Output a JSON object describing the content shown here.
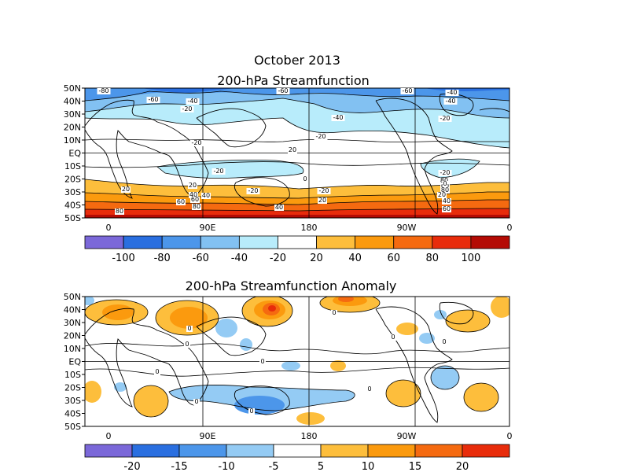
{
  "title": {
    "line1": "October 2013",
    "line2": "200-hPa Streamfunction"
  },
  "panel2_title": "200-hPa Streamfunction Anomaly",
  "lat_labels": [
    "50N",
    "40N",
    "30N",
    "20N",
    "10N",
    "EQ",
    "10S",
    "20S",
    "30S",
    "40S",
    "50S"
  ],
  "lon_labels": [
    "0",
    "90E",
    "180",
    "90W",
    "0"
  ],
  "colorbar1": {
    "labels": [
      "-100",
      "-80",
      "-60",
      "-40",
      "-20",
      "20",
      "40",
      "60",
      "80",
      "100"
    ],
    "colors": [
      "#7b68d9",
      "#2a6fe0",
      "#4c96ea",
      "#82c1f2",
      "#b8ecfb",
      "#ffffff",
      "#fdbe3c",
      "#fb9a0e",
      "#f56a10",
      "#e82c0b",
      "#b40b05"
    ]
  },
  "colorbar2": {
    "labels": [
      "-20",
      "-15",
      "-10",
      "-5",
      "5",
      "10",
      "15",
      "20"
    ],
    "colors": [
      "#7b68d9",
      "#2a6fe0",
      "#4c96ea",
      "#94cbf4",
      "#ffffff",
      "#fdbe3c",
      "#fb9a0e",
      "#f56a10",
      "#e82c0b"
    ]
  },
  "panel1_contour_labels": [
    "-80",
    "-60",
    "-40",
    "-20",
    "-60",
    "-40",
    "-40",
    "-20",
    "-60",
    "-40",
    "-20",
    "-20",
    "20",
    "-20",
    "0",
    "-20",
    "20",
    "-20",
    "40",
    "60",
    "80",
    "-20",
    "20",
    "40",
    "60",
    "80",
    "20",
    "40",
    "60",
    "80",
    "0",
    "20",
    "40",
    "60",
    "80"
  ],
  "panel2_contour_labels": [
    "0",
    "0",
    "0",
    "0",
    "0",
    "0",
    "0",
    "0",
    "0",
    "0"
  ]
}
